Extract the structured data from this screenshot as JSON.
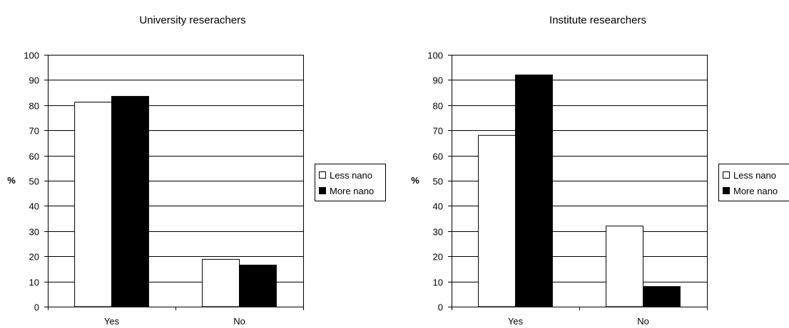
{
  "chart_data": [
    {
      "type": "bar",
      "title": "University reserachers",
      "ylabel": "%",
      "xlabel": "",
      "categories": [
        "Yes",
        "No"
      ],
      "ylim": [
        0,
        100
      ],
      "ytick_step": 10,
      "grid": true,
      "legend_position": "right",
      "series": [
        {
          "name": "Less nano",
          "values": [
            81.2,
            18.8
          ],
          "color": "#ffffff"
        },
        {
          "name": "More nano",
          "values": [
            83.5,
            16.5
          ],
          "color": "#000000"
        }
      ]
    },
    {
      "type": "bar",
      "title": "Institute researchers",
      "ylabel": "%",
      "xlabel": "",
      "categories": [
        "Yes",
        "No"
      ],
      "ylim": [
        0,
        100
      ],
      "ytick_step": 10,
      "grid": true,
      "legend_position": "right",
      "series": [
        {
          "name": "Less nano",
          "values": [
            68.0,
            32.0
          ],
          "color": "#ffffff"
        },
        {
          "name": "More nano",
          "values": [
            92.0,
            8.0
          ],
          "color": "#000000"
        }
      ]
    }
  ]
}
